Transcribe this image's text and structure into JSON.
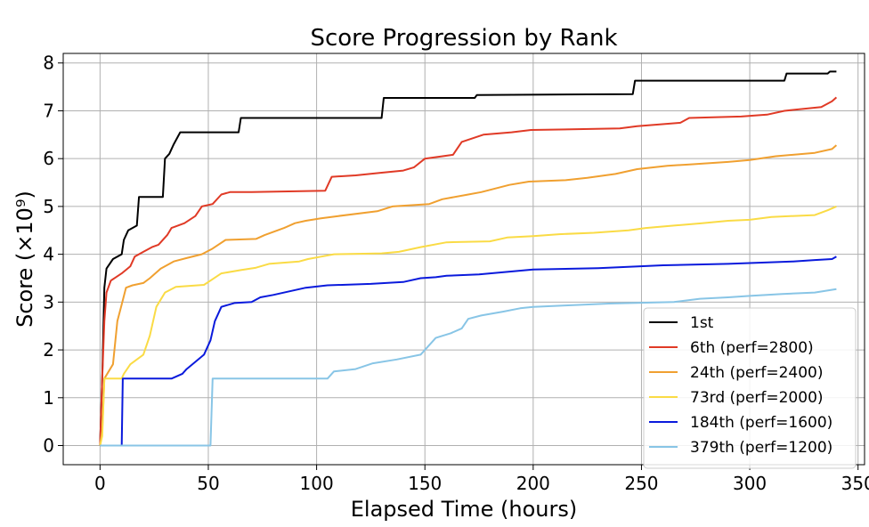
{
  "chart_data": {
    "type": "line",
    "title": "Score Progression by Rank",
    "xlabel": "Elapsed Time (hours)",
    "ylabel": "Score (×10⁹)",
    "xlim": [
      -17,
      353
    ],
    "ylim": [
      -0.4,
      8.2
    ],
    "xticks": [
      0,
      50,
      100,
      150,
      200,
      250,
      300,
      350
    ],
    "yticks": [
      0,
      1,
      2,
      3,
      4,
      5,
      6,
      7,
      8
    ],
    "grid": true,
    "legend_position": "lower-right",
    "series": [
      {
        "name": "1st",
        "color": "#000000",
        "points": [
          [
            0,
            0
          ],
          [
            1,
            1.4
          ],
          [
            2,
            3.3
          ],
          [
            3,
            3.7
          ],
          [
            6,
            3.9
          ],
          [
            10,
            4.0
          ],
          [
            11,
            4.3
          ],
          [
            13,
            4.5
          ],
          [
            17,
            4.6
          ],
          [
            18,
            5.2
          ],
          [
            29,
            5.2
          ],
          [
            30,
            6.0
          ],
          [
            32,
            6.1
          ],
          [
            34,
            6.3
          ],
          [
            37,
            6.55
          ],
          [
            64,
            6.55
          ],
          [
            65,
            6.85
          ],
          [
            130,
            6.85
          ],
          [
            131,
            7.27
          ],
          [
            173,
            7.27
          ],
          [
            174,
            7.33
          ],
          [
            246,
            7.35
          ],
          [
            247,
            7.63
          ],
          [
            316,
            7.63
          ],
          [
            317,
            7.78
          ],
          [
            336,
            7.78
          ],
          [
            337,
            7.82
          ],
          [
            340,
            7.82
          ]
        ]
      },
      {
        "name": "6th (perf=2800)",
        "color": "#e03a26",
        "points": [
          [
            0,
            0
          ],
          [
            1,
            1.4
          ],
          [
            2,
            2.6
          ],
          [
            3,
            3.2
          ],
          [
            5,
            3.45
          ],
          [
            10,
            3.6
          ],
          [
            14,
            3.75
          ],
          [
            16,
            3.95
          ],
          [
            20,
            4.05
          ],
          [
            24,
            4.15
          ],
          [
            27,
            4.2
          ],
          [
            31,
            4.4
          ],
          [
            33,
            4.55
          ],
          [
            39,
            4.65
          ],
          [
            44,
            4.8
          ],
          [
            47,
            5.0
          ],
          [
            52,
            5.05
          ],
          [
            56,
            5.25
          ],
          [
            60,
            5.3
          ],
          [
            70,
            5.3
          ],
          [
            104,
            5.33
          ],
          [
            107,
            5.62
          ],
          [
            118,
            5.65
          ],
          [
            129,
            5.7
          ],
          [
            140,
            5.75
          ],
          [
            145,
            5.82
          ],
          [
            150,
            6.0
          ],
          [
            163,
            6.08
          ],
          [
            167,
            6.35
          ],
          [
            177,
            6.5
          ],
          [
            190,
            6.55
          ],
          [
            199,
            6.6
          ],
          [
            240,
            6.63
          ],
          [
            248,
            6.68
          ],
          [
            268,
            6.75
          ],
          [
            272,
            6.85
          ],
          [
            296,
            6.88
          ],
          [
            308,
            6.92
          ],
          [
            316,
            7.0
          ],
          [
            333,
            7.08
          ],
          [
            338,
            7.2
          ],
          [
            340,
            7.28
          ]
        ]
      },
      {
        "name": "24th (perf=2400)",
        "color": "#f0a030",
        "points": [
          [
            0,
            0
          ],
          [
            1,
            0.3
          ],
          [
            2,
            1.4
          ],
          [
            6,
            1.7
          ],
          [
            8,
            2.6
          ],
          [
            10,
            2.95
          ],
          [
            12,
            3.3
          ],
          [
            15,
            3.35
          ],
          [
            20,
            3.4
          ],
          [
            23,
            3.5
          ],
          [
            28,
            3.7
          ],
          [
            34,
            3.85
          ],
          [
            40,
            3.92
          ],
          [
            47,
            4.0
          ],
          [
            52,
            4.12
          ],
          [
            58,
            4.3
          ],
          [
            72,
            4.32
          ],
          [
            76,
            4.4
          ],
          [
            85,
            4.55
          ],
          [
            90,
            4.65
          ],
          [
            95,
            4.7
          ],
          [
            102,
            4.75
          ],
          [
            110,
            4.8
          ],
          [
            128,
            4.9
          ],
          [
            135,
            5.0
          ],
          [
            152,
            5.05
          ],
          [
            158,
            5.15
          ],
          [
            170,
            5.25
          ],
          [
            176,
            5.3
          ],
          [
            189,
            5.45
          ],
          [
            198,
            5.52
          ],
          [
            215,
            5.55
          ],
          [
            225,
            5.6
          ],
          [
            238,
            5.68
          ],
          [
            248,
            5.78
          ],
          [
            262,
            5.85
          ],
          [
            273,
            5.88
          ],
          [
            290,
            5.93
          ],
          [
            300,
            5.97
          ],
          [
            312,
            6.05
          ],
          [
            330,
            6.12
          ],
          [
            338,
            6.2
          ],
          [
            340,
            6.28
          ]
        ]
      },
      {
        "name": "73rd (perf=2000)",
        "color": "#fadb45",
        "points": [
          [
            0,
            0
          ],
          [
            1,
            0.2
          ],
          [
            2,
            1.4
          ],
          [
            10,
            1.4
          ],
          [
            11,
            1.5
          ],
          [
            14,
            1.7
          ],
          [
            20,
            1.9
          ],
          [
            23,
            2.3
          ],
          [
            26,
            2.9
          ],
          [
            30,
            3.2
          ],
          [
            35,
            3.32
          ],
          [
            48,
            3.36
          ],
          [
            51,
            3.45
          ],
          [
            56,
            3.6
          ],
          [
            65,
            3.67
          ],
          [
            72,
            3.72
          ],
          [
            78,
            3.8
          ],
          [
            92,
            3.85
          ],
          [
            96,
            3.9
          ],
          [
            102,
            3.95
          ],
          [
            108,
            4.0
          ],
          [
            130,
            4.02
          ],
          [
            138,
            4.05
          ],
          [
            148,
            4.15
          ],
          [
            160,
            4.25
          ],
          [
            180,
            4.27
          ],
          [
            188,
            4.35
          ],
          [
            200,
            4.38
          ],
          [
            212,
            4.42
          ],
          [
            228,
            4.45
          ],
          [
            244,
            4.5
          ],
          [
            252,
            4.55
          ],
          [
            265,
            4.6
          ],
          [
            278,
            4.65
          ],
          [
            290,
            4.7
          ],
          [
            300,
            4.72
          ],
          [
            310,
            4.78
          ],
          [
            330,
            4.82
          ],
          [
            336,
            4.92
          ],
          [
            340,
            5.0
          ]
        ]
      },
      {
        "name": "184th (perf=1600)",
        "color": "#0a1adc",
        "points": [
          [
            0,
            0
          ],
          [
            10,
            0
          ],
          [
            10.5,
            1.4
          ],
          [
            33,
            1.4
          ],
          [
            38,
            1.5
          ],
          [
            40,
            1.6
          ],
          [
            44,
            1.75
          ],
          [
            48,
            1.9
          ],
          [
            51,
            2.2
          ],
          [
            53,
            2.6
          ],
          [
            56,
            2.9
          ],
          [
            62,
            2.98
          ],
          [
            70,
            3.0
          ],
          [
            74,
            3.1
          ],
          [
            80,
            3.15
          ],
          [
            95,
            3.3
          ],
          [
            105,
            3.35
          ],
          [
            125,
            3.38
          ],
          [
            140,
            3.42
          ],
          [
            148,
            3.5
          ],
          [
            155,
            3.52
          ],
          [
            160,
            3.55
          ],
          [
            175,
            3.58
          ],
          [
            200,
            3.68
          ],
          [
            230,
            3.71
          ],
          [
            260,
            3.77
          ],
          [
            290,
            3.8
          ],
          [
            320,
            3.85
          ],
          [
            330,
            3.88
          ],
          [
            338,
            3.9
          ],
          [
            340,
            3.95
          ]
        ]
      },
      {
        "name": "379th (perf=1200)",
        "color": "#88c5e6",
        "points": [
          [
            0,
            0
          ],
          [
            51,
            0
          ],
          [
            52,
            1.4
          ],
          [
            105,
            1.4
          ],
          [
            108,
            1.55
          ],
          [
            118,
            1.6
          ],
          [
            126,
            1.72
          ],
          [
            137,
            1.8
          ],
          [
            148,
            1.9
          ],
          [
            152,
            2.1
          ],
          [
            155,
            2.25
          ],
          [
            162,
            2.35
          ],
          [
            167,
            2.45
          ],
          [
            170,
            2.65
          ],
          [
            176,
            2.72
          ],
          [
            186,
            2.8
          ],
          [
            194,
            2.87
          ],
          [
            200,
            2.9
          ],
          [
            215,
            2.93
          ],
          [
            235,
            2.97
          ],
          [
            265,
            3.0
          ],
          [
            277,
            3.07
          ],
          [
            290,
            3.1
          ],
          [
            300,
            3.13
          ],
          [
            315,
            3.17
          ],
          [
            330,
            3.2
          ],
          [
            340,
            3.27
          ]
        ]
      }
    ]
  }
}
